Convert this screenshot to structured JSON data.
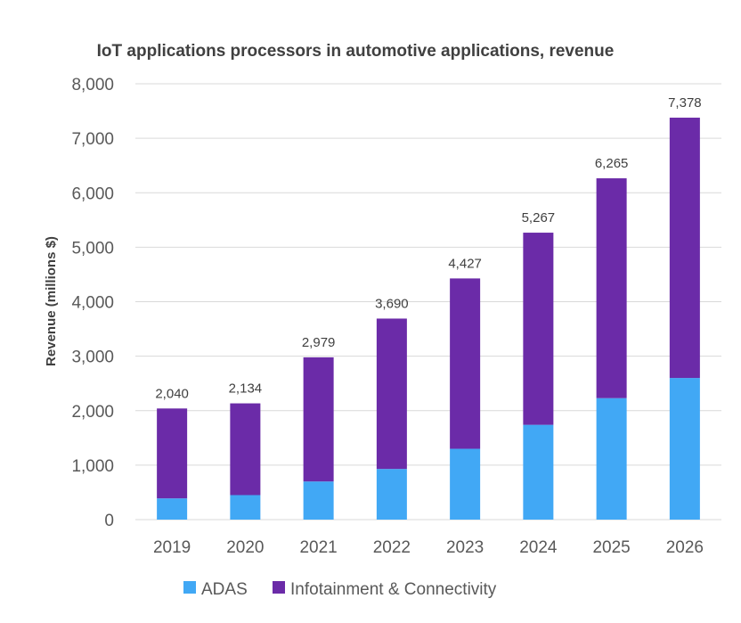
{
  "chart_data": {
    "type": "bar",
    "stacked": true,
    "title": "IoT applications processors in automotive applications, revenue",
    "xlabel": "",
    "ylabel": "Revenue  (millions $)",
    "categories": [
      "2019",
      "2020",
      "2021",
      "2022",
      "2023",
      "2024",
      "2025",
      "2026"
    ],
    "series": [
      {
        "name": "ADAS",
        "color": "#41a8f5",
        "values": [
          390,
          450,
          700,
          930,
          1300,
          1740,
          2230,
          2600
        ]
      },
      {
        "name": "Infotainment & Connectivity",
        "color": "#6b2ba8",
        "values": [
          1650,
          1684,
          2279,
          2760,
          3127,
          3527,
          4035,
          4778
        ]
      }
    ],
    "totals": [
      2040,
      2134,
      2979,
      3690,
      4427,
      5267,
      6265,
      7378
    ],
    "total_labels": [
      "2,040",
      "2,134",
      "2,979",
      "3,690",
      "4,427",
      "5,267",
      "6,265",
      "7,378"
    ],
    "ylim": [
      0,
      8000
    ],
    "yticks": [
      0,
      1000,
      2000,
      3000,
      4000,
      5000,
      6000,
      7000,
      8000
    ],
    "ytick_labels": [
      "0",
      "1,000",
      "2,000",
      "3,000",
      "4,000",
      "5,000",
      "6,000",
      "7,000",
      "8,000"
    ],
    "grid": true,
    "legend_position": "bottom"
  }
}
